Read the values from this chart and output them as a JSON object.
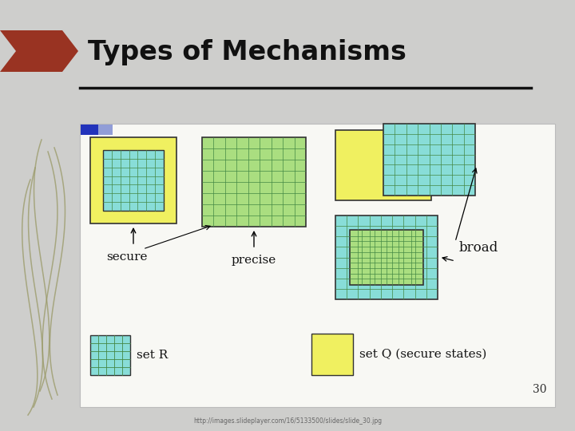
{
  "title": "Types of Mechanisms",
  "bg_color": "#cececc",
  "white_panel_color": "#f8f8f4",
  "yellow_color": "#f0f060",
  "cyan_color": "#88ddd8",
  "green_color": "#aade80",
  "dark_red": "#993322",
  "title_color": "#111111",
  "url_text": "http://images.slideplayer.com/16/5133500/slides/slide_30.jpg",
  "page_number": "30",
  "reed_color": "#999966",
  "blue_bar_color": "#3344bb",
  "line_color": "#111111"
}
